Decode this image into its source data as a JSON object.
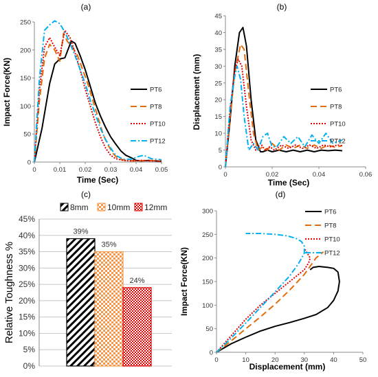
{
  "chart_data": [
    {
      "panel": "(a)",
      "type": "line",
      "xlabel": "Time (Sec)",
      "ylabel": "Impact Force(KN)",
      "xlim": [
        0,
        0.05
      ],
      "ylim": [
        0,
        250
      ],
      "xticks": [
        "0",
        "0.01",
        "0.02",
        "0.03",
        "0.04",
        "0.05"
      ],
      "yticks": [
        "0",
        "50",
        "100",
        "150",
        "200",
        "250"
      ],
      "legend_position": "right",
      "series": [
        {
          "name": "PT6",
          "color": "#000000",
          "dash": "solid",
          "x": [
            0,
            0.003,
            0.006,
            0.008,
            0.01,
            0.012,
            0.0145,
            0.016,
            0.018,
            0.02,
            0.022,
            0.024,
            0.026,
            0.028,
            0.03,
            0.032,
            0.034,
            0.036,
            0.038,
            0.04,
            0.042,
            0.045,
            0.048,
            0.05
          ],
          "y": [
            0,
            60,
            140,
            175,
            184,
            186,
            216,
            212,
            190,
            165,
            135,
            105,
            82,
            62,
            45,
            32,
            20,
            12,
            8,
            3,
            2,
            3,
            2,
            1
          ]
        },
        {
          "name": "PT8",
          "color": "#e36c0a",
          "dash": "long-dash",
          "x": [
            0,
            0.002,
            0.004,
            0.006,
            0.008,
            0.01,
            0.0115,
            0.013,
            0.015,
            0.017,
            0.019,
            0.021,
            0.023,
            0.025,
            0.027,
            0.029,
            0.031,
            0.033,
            0.036,
            0.04,
            0.045,
            0.05
          ],
          "y": [
            0,
            110,
            185,
            210,
            200,
            180,
            230,
            215,
            205,
            190,
            165,
            140,
            110,
            80,
            50,
            30,
            15,
            6,
            3,
            2,
            3,
            2
          ]
        },
        {
          "name": "PT10",
          "color": "#e00000",
          "dash": "dotted",
          "x": [
            0,
            0.002,
            0.004,
            0.006,
            0.008,
            0.01,
            0.012,
            0.014,
            0.016,
            0.018,
            0.02,
            0.022,
            0.024,
            0.026,
            0.028,
            0.03,
            0.032,
            0.035,
            0.038,
            0.042,
            0.046,
            0.05
          ],
          "y": [
            0,
            130,
            205,
            222,
            205,
            190,
            235,
            222,
            195,
            165,
            130,
            100,
            70,
            45,
            25,
            12,
            6,
            3,
            2,
            3,
            2,
            2
          ]
        },
        {
          "name": "PT12",
          "color": "#00b0f0",
          "dash": "dash-dot",
          "x": [
            0,
            0.002,
            0.004,
            0.006,
            0.008,
            0.01,
            0.012,
            0.014,
            0.016,
            0.018,
            0.02,
            0.022,
            0.024,
            0.026,
            0.028,
            0.03,
            0.032,
            0.035,
            0.038,
            0.041,
            0.043,
            0.046,
            0.05
          ],
          "y": [
            0,
            150,
            235,
            245,
            252,
            247,
            232,
            212,
            190,
            165,
            140,
            110,
            85,
            60,
            40,
            25,
            12,
            5,
            5,
            10,
            12,
            6,
            4
          ]
        }
      ]
    },
    {
      "panel": "(b)",
      "type": "line",
      "xlabel": "Time (Sec)",
      "ylabel": "Displacement (mm)",
      "xlim": [
        0,
        0.06
      ],
      "ylim": [
        0,
        45
      ],
      "xticks": [
        "0",
        "0.02",
        "0.04",
        "0.06"
      ],
      "yticks": [
        "0",
        "5",
        "10",
        "15",
        "20",
        "25",
        "30",
        "35",
        "40",
        "45"
      ],
      "legend_position": "right",
      "series": [
        {
          "name": "PT6",
          "color": "#000000",
          "dash": "solid",
          "x": [
            0,
            0.002,
            0.004,
            0.006,
            0.0075,
            0.009,
            0.011,
            0.013,
            0.015,
            0.016,
            0.018,
            0.02,
            0.023,
            0.026,
            0.029,
            0.032,
            0.035,
            0.038,
            0.041,
            0.044,
            0.047,
            0.05
          ],
          "y": [
            0,
            14,
            30,
            40,
            41.5,
            36,
            20,
            8,
            4.5,
            4.5,
            5,
            4.5,
            5,
            4.5,
            5,
            4.5,
            5,
            4.5,
            5,
            4.8,
            5,
            4.8
          ]
        },
        {
          "name": "PT8",
          "color": "#e36c0a",
          "dash": "long-dash",
          "x": [
            0,
            0.002,
            0.004,
            0.0065,
            0.008,
            0.01,
            0.012,
            0.014,
            0.016,
            0.018,
            0.02,
            0.023,
            0.026,
            0.029,
            0.032,
            0.035,
            0.038,
            0.041,
            0.044,
            0.047,
            0.05
          ],
          "y": [
            0,
            15,
            28,
            36.5,
            35,
            22,
            10,
            5,
            6,
            5,
            7,
            5,
            6.5,
            5.5,
            6.5,
            5.5,
            6.5,
            5.5,
            6.5,
            5.8,
            6.3
          ]
        },
        {
          "name": "PT10",
          "color": "#e00000",
          "dash": "dotted",
          "x": [
            0,
            0.002,
            0.004,
            0.0055,
            0.007,
            0.009,
            0.011,
            0.013,
            0.015,
            0.017,
            0.019,
            0.021,
            0.024,
            0.027,
            0.03,
            0.033,
            0.036,
            0.039,
            0.042,
            0.045,
            0.048,
            0.05
          ],
          "y": [
            0,
            17,
            29,
            32,
            30,
            18,
            8,
            5,
            7,
            5,
            6,
            5,
            6.5,
            5.5,
            6.5,
            5.5,
            6.5,
            5.5,
            6.5,
            6,
            6.5,
            6.3
          ]
        },
        {
          "name": "PT12",
          "color": "#00b0f0",
          "dash": "dash-dot",
          "x": [
            0,
            0.002,
            0.004,
            0.005,
            0.0065,
            0.008,
            0.01,
            0.012,
            0.014,
            0.016,
            0.018,
            0.02,
            0.022,
            0.025,
            0.028,
            0.031,
            0.034,
            0.037,
            0.04,
            0.043,
            0.046,
            0.05
          ],
          "y": [
            0,
            18,
            27,
            30,
            26,
            15,
            5,
            7,
            5,
            9,
            10,
            6,
            6,
            9,
            7,
            9,
            6,
            9.5,
            7,
            10,
            7,
            8
          ]
        }
      ]
    },
    {
      "panel": "(c)",
      "type": "bar",
      "ylabel": "Relative Toughness %",
      "ylim": [
        0,
        45
      ],
      "yticks": [
        "0%",
        "5%",
        "10%",
        "15%",
        "20%",
        "25%",
        "30%",
        "35%",
        "40%",
        "45%"
      ],
      "legend_position": "top",
      "categories": [
        "8mm",
        "10mm",
        "12mm"
      ],
      "values": [
        39,
        35,
        24
      ],
      "data_labels": [
        "39%",
        "35%",
        "24%"
      ],
      "colors": [
        "#000000",
        "#f79646",
        "#e00000"
      ],
      "patterns": [
        "diagonal-hatch",
        "checker",
        "fine-checker"
      ]
    },
    {
      "panel": "(d)",
      "type": "line",
      "xlabel": "Displacement (mm)",
      "ylabel": "Impact Force(KN)",
      "xlim": [
        0,
        50
      ],
      "ylim": [
        0,
        300
      ],
      "xticks": [
        "0",
        "10",
        "20",
        "30",
        "40",
        "50"
      ],
      "yticks": [
        "0",
        "50",
        "100",
        "150",
        "200",
        "250",
        "300"
      ],
      "legend_position": "top-right",
      "series": [
        {
          "name": "PT6",
          "color": "#000000",
          "dash": "solid",
          "x": [
            0,
            5,
            10,
            15,
            20,
            25,
            30,
            34,
            38,
            40,
            41.5,
            42,
            41.5,
            40,
            38,
            35,
            33,
            32
          ],
          "y": [
            0,
            18,
            32,
            45,
            55,
            63,
            72,
            80,
            95,
            110,
            130,
            150,
            170,
            178,
            180,
            182,
            180,
            175
          ]
        },
        {
          "name": "PT8",
          "color": "#e36c0a",
          "dash": "long-dash",
          "x": [
            0,
            5,
            10,
            15,
            20,
            25,
            30,
            34,
            36.5
          ],
          "y": [
            0,
            24,
            50,
            75,
            102,
            132,
            165,
            200,
            213
          ]
        },
        {
          "name": "PT10",
          "color": "#e00000",
          "dash": "dotted",
          "x": [
            0,
            5,
            10,
            15,
            20,
            25,
            30,
            31.5,
            32,
            31,
            30
          ],
          "y": [
            0,
            35,
            70,
            100,
            125,
            150,
            175,
            190,
            200,
            210,
            220
          ]
        },
        {
          "name": "PT12",
          "color": "#00b0f0",
          "dash": "dash-dot",
          "x": [
            0,
            5,
            10,
            15,
            20,
            25,
            28,
            30,
            30,
            29,
            27,
            24,
            20,
            15,
            10
          ],
          "y": [
            0,
            30,
            62,
            95,
            128,
            162,
            188,
            210,
            225,
            235,
            242,
            247,
            250,
            252,
            252
          ]
        }
      ]
    }
  ]
}
